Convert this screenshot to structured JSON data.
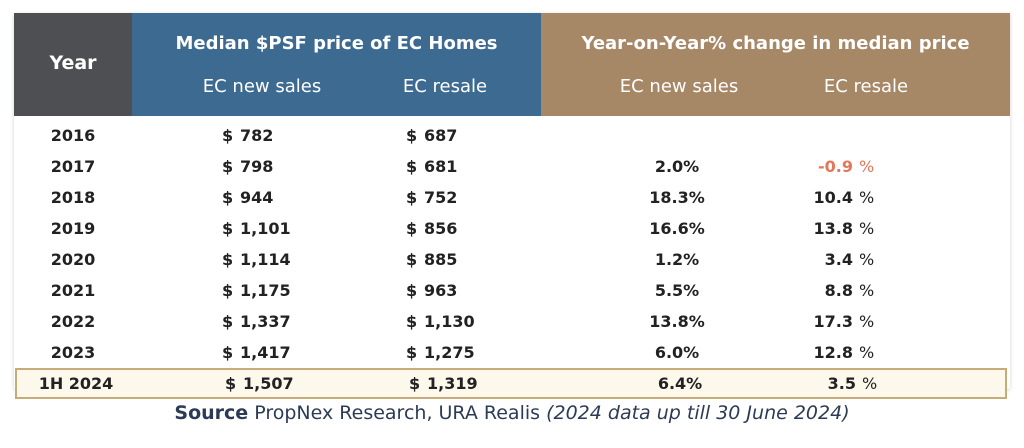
{
  "header": {
    "year": "Year",
    "median_title": "Median $PSF price of EC Homes",
    "yoy_title": "Year-on-Year% change in median price",
    "median_cols": [
      "EC new sales",
      "EC resale"
    ],
    "yoy_cols": [
      "EC new sales",
      "EC resale"
    ]
  },
  "currency": "$",
  "percent_sign": "%",
  "rows": [
    {
      "year": "2016",
      "new_psf": "782",
      "resale_psf": "687",
      "yoy_new": "",
      "yoy_resale": "",
      "pct": ""
    },
    {
      "year": "2017",
      "new_psf": "798",
      "resale_psf": "681",
      "yoy_new": "2.0%",
      "yoy_resale": "-0.9",
      "pct": "%"
    },
    {
      "year": "2018",
      "new_psf": "944",
      "resale_psf": "752",
      "yoy_new": "18.3%",
      "yoy_resale": "10.4",
      "pct": "%"
    },
    {
      "year": "2019",
      "new_psf": "1,101",
      "resale_psf": "856",
      "yoy_new": "16.6%",
      "yoy_resale": "13.8",
      "pct": "%"
    },
    {
      "year": "2020",
      "new_psf": "1,114",
      "resale_psf": "885",
      "yoy_new": "1.2%",
      "yoy_resale": "3.4",
      "pct": "%"
    },
    {
      "year": "2021",
      "new_psf": "1,175",
      "resale_psf": "963",
      "yoy_new": "5.5%",
      "yoy_resale": "8.8",
      "pct": "%"
    },
    {
      "year": "2022",
      "new_psf": "1,337",
      "resale_psf": "1,130",
      "yoy_new": "13.8%",
      "yoy_resale": "17.3",
      "pct": "%"
    },
    {
      "year": "2023",
      "new_psf": "1,417",
      "resale_psf": "1,275",
      "yoy_new": "6.0%",
      "yoy_resale": "12.8",
      "pct": "%"
    },
    {
      "year": "1H 2024",
      "new_psf": "1,507",
      "resale_psf": "1,319",
      "yoy_new": "6.4%",
      "yoy_resale": "3.5",
      "pct": "%"
    }
  ],
  "source": {
    "label": "Source",
    "text": "PropNex Research, URA Realis",
    "note": "(2024 data up till 30 June 2024)"
  },
  "colors": {
    "year_header": "#4d4f53",
    "median_header": "#3d6a91",
    "yoy_header": "#a68766",
    "negative": "#e2775a",
    "highlight_bg": "#fcf8ec",
    "highlight_border": "#c7ac79"
  },
  "chart_data": {
    "type": "table",
    "columns": [
      "Year",
      "EC new sales ($PSF)",
      "EC resale ($PSF)",
      "YoY EC new sales (%)",
      "YoY EC resale (%)"
    ],
    "rows": [
      [
        "2016",
        782,
        687,
        null,
        null
      ],
      [
        "2017",
        798,
        681,
        2.0,
        -0.9
      ],
      [
        "2018",
        944,
        752,
        18.3,
        10.4
      ],
      [
        "2019",
        1101,
        856,
        16.6,
        13.8
      ],
      [
        "2020",
        1114,
        885,
        1.2,
        3.4
      ],
      [
        "2021",
        1175,
        963,
        5.5,
        8.8
      ],
      [
        "2022",
        1337,
        1130,
        13.8,
        17.3
      ],
      [
        "2023",
        1417,
        1275,
        6.0,
        12.8
      ],
      [
        "1H 2024",
        1507,
        1319,
        6.4,
        3.5
      ]
    ]
  }
}
